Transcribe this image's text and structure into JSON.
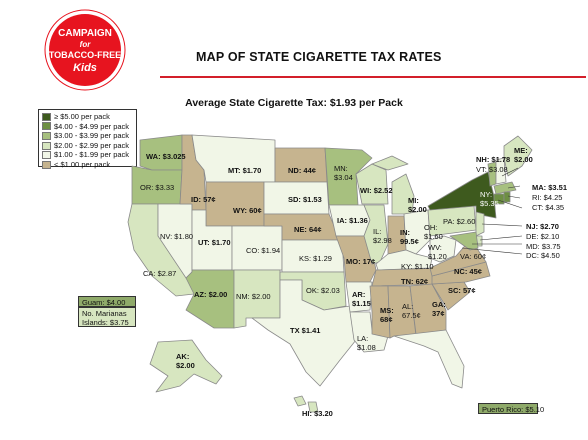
{
  "logo": {
    "line1": "CAMPAIGN",
    "line2": "for",
    "line3": "TOBACCO-FREE",
    "line4": "Kids",
    "registered": "®"
  },
  "title": "MAP OF STATE CIGARETTE TAX RATES",
  "subtitle": "Average State Cigarette Tax: $1.93 per Pack",
  "colors": {
    "tier5": "#3e5a1e",
    "tier4": "#6d8f43",
    "tier3": "#a7c07f",
    "tier2": "#d7e6c0",
    "tier1": "#f1f6e7",
    "tier0": "#c6b48f",
    "accent": "#d31f2a",
    "ocean": "#ffffff"
  },
  "legend": [
    {
      "label": "≥ $5.00 per pack",
      "color": "#3e5a1e"
    },
    {
      "label": "$4.00 - $4.99 per pack",
      "color": "#6d8f43"
    },
    {
      "label": "$3.00 - $3.99 per pack",
      "color": "#a7c07f"
    },
    {
      "label": "$2.00 - $2.99 per pack",
      "color": "#d7e6c0"
    },
    {
      "label": "$1.00 - $1.99 per pack",
      "color": "#f1f6e7"
    },
    {
      "label": "< $1.00 per pack",
      "color": "#c6b48f"
    }
  ],
  "states": {
    "WA": "WA: $3.025",
    "OR": "OR: $3.33",
    "CA": "CA: $2.87",
    "NV": "NV: $1.80",
    "ID": "ID: 57¢",
    "MT": "MT: $1.70",
    "WY": "WY: 60¢",
    "UT": "UT: $1.70",
    "AZ": "AZ: $2.00",
    "CO": "CO: $1.94",
    "NM": "NM: $2.00",
    "ND": "ND: 44¢",
    "SD": "SD: $1.53",
    "NE": "NE: 64¢",
    "KS": "KS: $1.29",
    "OK": "OK: $2.03",
    "TX": "TX $1.41",
    "MN": "MN: $3.04",
    "IA": "IA: $1.36",
    "MO": "MO: 17¢",
    "AR": "AR: $1.15",
    "LA": "LA: $1.08",
    "WI": "WI: $2.52",
    "IL": "IL: $2.98",
    "MI": "MI: $2.00",
    "IN": "IN: 99.5¢",
    "OH": "OH: $1.60",
    "KY": "KY: $1.10",
    "TN": "TN: 62¢",
    "MS": "MS: 68¢",
    "AL": "AL: 67.5¢",
    "GA": "GA: 37¢",
    "FL": "FL: $1.339",
    "SC": "SC: 57¢",
    "NC": "NC: 45¢",
    "VA": "VA: 60¢",
    "WV": "WV: $1.20",
    "PA": "PA: $2.60",
    "NY": "NY: $5.35",
    "ME": "ME: $2.00",
    "NH": "NH: $1.78",
    "VT": "VT: $3.08",
    "MA": "MA: $3.51",
    "RI": "RI: $4.25",
    "CT": "CT: $4.35",
    "NJ": "NJ: $2.70",
    "DE": "DE: $2.10",
    "MD": "MD: $3.75",
    "DC": "DC: $4.50",
    "AK": "AK: $2.00",
    "HI": "HI: $3.20"
  },
  "territories": {
    "guam": "Guam: $4.00",
    "marianas": "No. Marianas Islands: $3.75",
    "puerto_rico": "Puerto Rico: $5.10"
  }
}
